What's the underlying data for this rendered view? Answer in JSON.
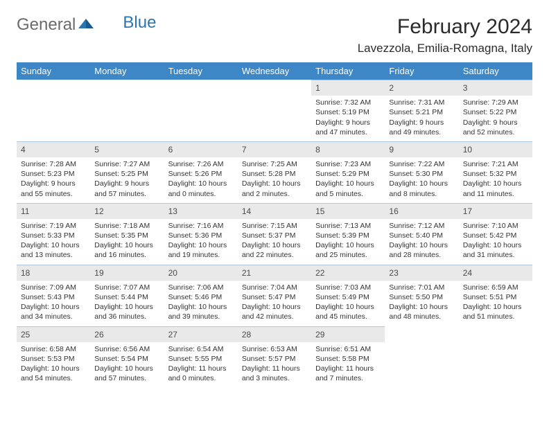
{
  "logo": {
    "general": "General",
    "blue": "Blue"
  },
  "title": "February 2024",
  "location": "Lavezzola, Emilia-Romagna, Italy",
  "colors": {
    "header_bg": "#3d87c7",
    "header_text": "#ffffff",
    "day_number_bg": "#e9e9e9",
    "row_border": "#adc6dd",
    "logo_gray": "#6a6a6a",
    "logo_blue": "#2b75b3",
    "text": "#333333"
  },
  "weekdays": [
    "Sunday",
    "Monday",
    "Tuesday",
    "Wednesday",
    "Thursday",
    "Friday",
    "Saturday"
  ],
  "weeks": [
    [
      null,
      null,
      null,
      null,
      {
        "n": "1",
        "sunrise": "Sunrise: 7:32 AM",
        "sunset": "Sunset: 5:19 PM",
        "daylight": "Daylight: 9 hours and 47 minutes."
      },
      {
        "n": "2",
        "sunrise": "Sunrise: 7:31 AM",
        "sunset": "Sunset: 5:21 PM",
        "daylight": "Daylight: 9 hours and 49 minutes."
      },
      {
        "n": "3",
        "sunrise": "Sunrise: 7:29 AM",
        "sunset": "Sunset: 5:22 PM",
        "daylight": "Daylight: 9 hours and 52 minutes."
      }
    ],
    [
      {
        "n": "4",
        "sunrise": "Sunrise: 7:28 AM",
        "sunset": "Sunset: 5:23 PM",
        "daylight": "Daylight: 9 hours and 55 minutes."
      },
      {
        "n": "5",
        "sunrise": "Sunrise: 7:27 AM",
        "sunset": "Sunset: 5:25 PM",
        "daylight": "Daylight: 9 hours and 57 minutes."
      },
      {
        "n": "6",
        "sunrise": "Sunrise: 7:26 AM",
        "sunset": "Sunset: 5:26 PM",
        "daylight": "Daylight: 10 hours and 0 minutes."
      },
      {
        "n": "7",
        "sunrise": "Sunrise: 7:25 AM",
        "sunset": "Sunset: 5:28 PM",
        "daylight": "Daylight: 10 hours and 2 minutes."
      },
      {
        "n": "8",
        "sunrise": "Sunrise: 7:23 AM",
        "sunset": "Sunset: 5:29 PM",
        "daylight": "Daylight: 10 hours and 5 minutes."
      },
      {
        "n": "9",
        "sunrise": "Sunrise: 7:22 AM",
        "sunset": "Sunset: 5:30 PM",
        "daylight": "Daylight: 10 hours and 8 minutes."
      },
      {
        "n": "10",
        "sunrise": "Sunrise: 7:21 AM",
        "sunset": "Sunset: 5:32 PM",
        "daylight": "Daylight: 10 hours and 11 minutes."
      }
    ],
    [
      {
        "n": "11",
        "sunrise": "Sunrise: 7:19 AM",
        "sunset": "Sunset: 5:33 PM",
        "daylight": "Daylight: 10 hours and 13 minutes."
      },
      {
        "n": "12",
        "sunrise": "Sunrise: 7:18 AM",
        "sunset": "Sunset: 5:35 PM",
        "daylight": "Daylight: 10 hours and 16 minutes."
      },
      {
        "n": "13",
        "sunrise": "Sunrise: 7:16 AM",
        "sunset": "Sunset: 5:36 PM",
        "daylight": "Daylight: 10 hours and 19 minutes."
      },
      {
        "n": "14",
        "sunrise": "Sunrise: 7:15 AM",
        "sunset": "Sunset: 5:37 PM",
        "daylight": "Daylight: 10 hours and 22 minutes."
      },
      {
        "n": "15",
        "sunrise": "Sunrise: 7:13 AM",
        "sunset": "Sunset: 5:39 PM",
        "daylight": "Daylight: 10 hours and 25 minutes."
      },
      {
        "n": "16",
        "sunrise": "Sunrise: 7:12 AM",
        "sunset": "Sunset: 5:40 PM",
        "daylight": "Daylight: 10 hours and 28 minutes."
      },
      {
        "n": "17",
        "sunrise": "Sunrise: 7:10 AM",
        "sunset": "Sunset: 5:42 PM",
        "daylight": "Daylight: 10 hours and 31 minutes."
      }
    ],
    [
      {
        "n": "18",
        "sunrise": "Sunrise: 7:09 AM",
        "sunset": "Sunset: 5:43 PM",
        "daylight": "Daylight: 10 hours and 34 minutes."
      },
      {
        "n": "19",
        "sunrise": "Sunrise: 7:07 AM",
        "sunset": "Sunset: 5:44 PM",
        "daylight": "Daylight: 10 hours and 36 minutes."
      },
      {
        "n": "20",
        "sunrise": "Sunrise: 7:06 AM",
        "sunset": "Sunset: 5:46 PM",
        "daylight": "Daylight: 10 hours and 39 minutes."
      },
      {
        "n": "21",
        "sunrise": "Sunrise: 7:04 AM",
        "sunset": "Sunset: 5:47 PM",
        "daylight": "Daylight: 10 hours and 42 minutes."
      },
      {
        "n": "22",
        "sunrise": "Sunrise: 7:03 AM",
        "sunset": "Sunset: 5:49 PM",
        "daylight": "Daylight: 10 hours and 45 minutes."
      },
      {
        "n": "23",
        "sunrise": "Sunrise: 7:01 AM",
        "sunset": "Sunset: 5:50 PM",
        "daylight": "Daylight: 10 hours and 48 minutes."
      },
      {
        "n": "24",
        "sunrise": "Sunrise: 6:59 AM",
        "sunset": "Sunset: 5:51 PM",
        "daylight": "Daylight: 10 hours and 51 minutes."
      }
    ],
    [
      {
        "n": "25",
        "sunrise": "Sunrise: 6:58 AM",
        "sunset": "Sunset: 5:53 PM",
        "daylight": "Daylight: 10 hours and 54 minutes."
      },
      {
        "n": "26",
        "sunrise": "Sunrise: 6:56 AM",
        "sunset": "Sunset: 5:54 PM",
        "daylight": "Daylight: 10 hours and 57 minutes."
      },
      {
        "n": "27",
        "sunrise": "Sunrise: 6:54 AM",
        "sunset": "Sunset: 5:55 PM",
        "daylight": "Daylight: 11 hours and 0 minutes."
      },
      {
        "n": "28",
        "sunrise": "Sunrise: 6:53 AM",
        "sunset": "Sunset: 5:57 PM",
        "daylight": "Daylight: 11 hours and 3 minutes."
      },
      {
        "n": "29",
        "sunrise": "Sunrise: 6:51 AM",
        "sunset": "Sunset: 5:58 PM",
        "daylight": "Daylight: 11 hours and 7 minutes."
      },
      null,
      null
    ]
  ]
}
